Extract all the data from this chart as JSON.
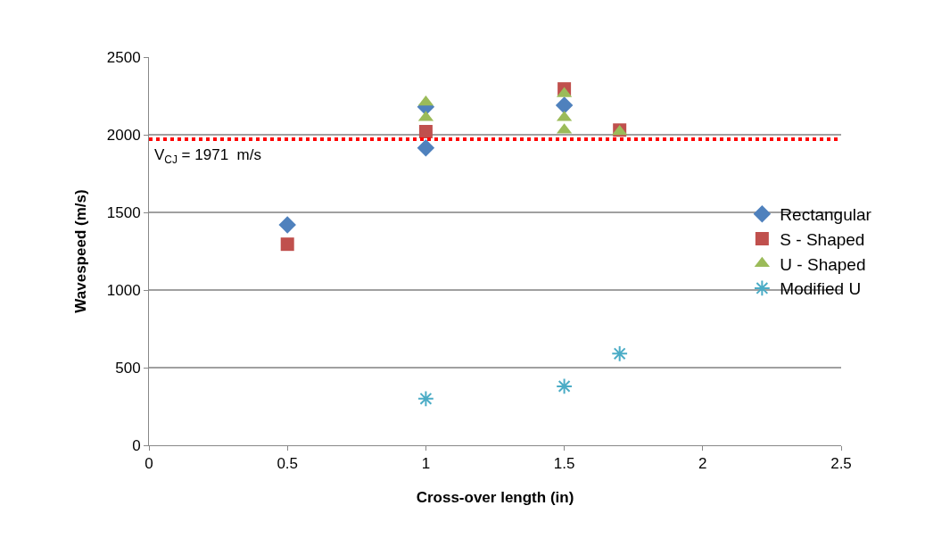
{
  "chart_data": {
    "type": "scatter",
    "xlabel": "Cross-over length (in)",
    "ylabel": "Wavespeed (m/s)",
    "series": [
      {
        "name": "Rectangular",
        "color": "#4f81bd",
        "marker": "diamond",
        "x": [
          0.5,
          1,
          1,
          1.5
        ],
        "values": [
          1420,
          2180,
          1915,
          2190
        ]
      },
      {
        "name": "S - Shaped",
        "color": "#c0504d",
        "marker": "square",
        "x": [
          0.5,
          1,
          1.5,
          1.7
        ],
        "values": [
          1295,
          2020,
          2295,
          2030
        ]
      },
      {
        "name": "U - Shaped",
        "color": "#9bbb59",
        "marker": "triangle",
        "x": [
          1,
          1,
          1.5,
          1.5,
          1.5,
          1.7
        ],
        "values": [
          2210,
          2110,
          2265,
          2110,
          2030,
          2020
        ]
      },
      {
        "name": "Modified U",
        "color": "#4bacc6",
        "marker": "cross",
        "x": [
          1,
          1.5,
          1.7
        ],
        "values": [
          300,
          380,
          590
        ]
      }
    ],
    "xlim": [
      0,
      2.5
    ],
    "xticks": [
      0,
      0.5,
      1,
      1.5,
      2,
      2.5
    ],
    "ylim": [
      0,
      2500
    ],
    "yticks": [
      0,
      500,
      1000,
      1500,
      2000,
      2500
    ],
    "ref_lines": [
      {
        "axis": "y",
        "value": 1971,
        "label": "V$_{CJ}$ = 1971  m/s",
        "color": "#ff0000",
        "line_style": "dotted"
      }
    ],
    "grid": "y",
    "legend": "right"
  }
}
